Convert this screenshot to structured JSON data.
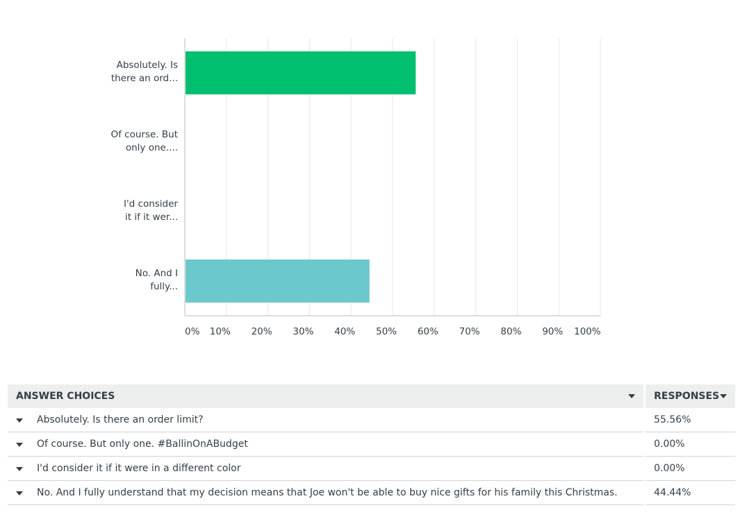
{
  "chart_data": {
    "type": "bar",
    "orientation": "horizontal",
    "categories": [
      "Absolutely. Is there an ord...",
      "Of course. But only one....",
      "I'd consider it if it wer...",
      "No. And I fully..."
    ],
    "values": [
      55.56,
      0,
      0,
      44.44
    ],
    "bar_colors": [
      "#00bf6f",
      "#00bf6f",
      "#00bf6f",
      "#6bc8cd"
    ],
    "xlim": [
      0,
      100
    ],
    "xticks": [
      "0%",
      "10%",
      "20%",
      "30%",
      "40%",
      "50%",
      "60%",
      "70%",
      "80%",
      "90%",
      "100%"
    ],
    "grid": true,
    "title": "",
    "xlabel": "",
    "ylabel": ""
  },
  "category_label_lines": [
    [
      "Absolutely. Is",
      "there an ord..."
    ],
    [
      "Of course. But",
      "only one...."
    ],
    [
      "I'd consider",
      "it if it wer..."
    ],
    [
      "No. And I",
      "fully..."
    ]
  ],
  "table": {
    "header_choices": "ANSWER CHOICES",
    "header_responses": "RESPONSES",
    "rows": [
      {
        "choice": "Absolutely. Is there an order limit?",
        "response": "55.56%"
      },
      {
        "choice": "Of course. But only one. #BallinOnABudget",
        "response": "0.00%"
      },
      {
        "choice": "I'd consider it if it were in a different color",
        "response": "0.00%"
      },
      {
        "choice": "No. And I fully understand that my decision means that Joe won't be able to buy nice gifts for his family this Christmas.",
        "response": "44.44%"
      }
    ]
  },
  "colors": {
    "grid": "#e6e7e8",
    "axis": "#d0d2d3",
    "text": "#333e48",
    "header_bg": "#edeeee"
  }
}
